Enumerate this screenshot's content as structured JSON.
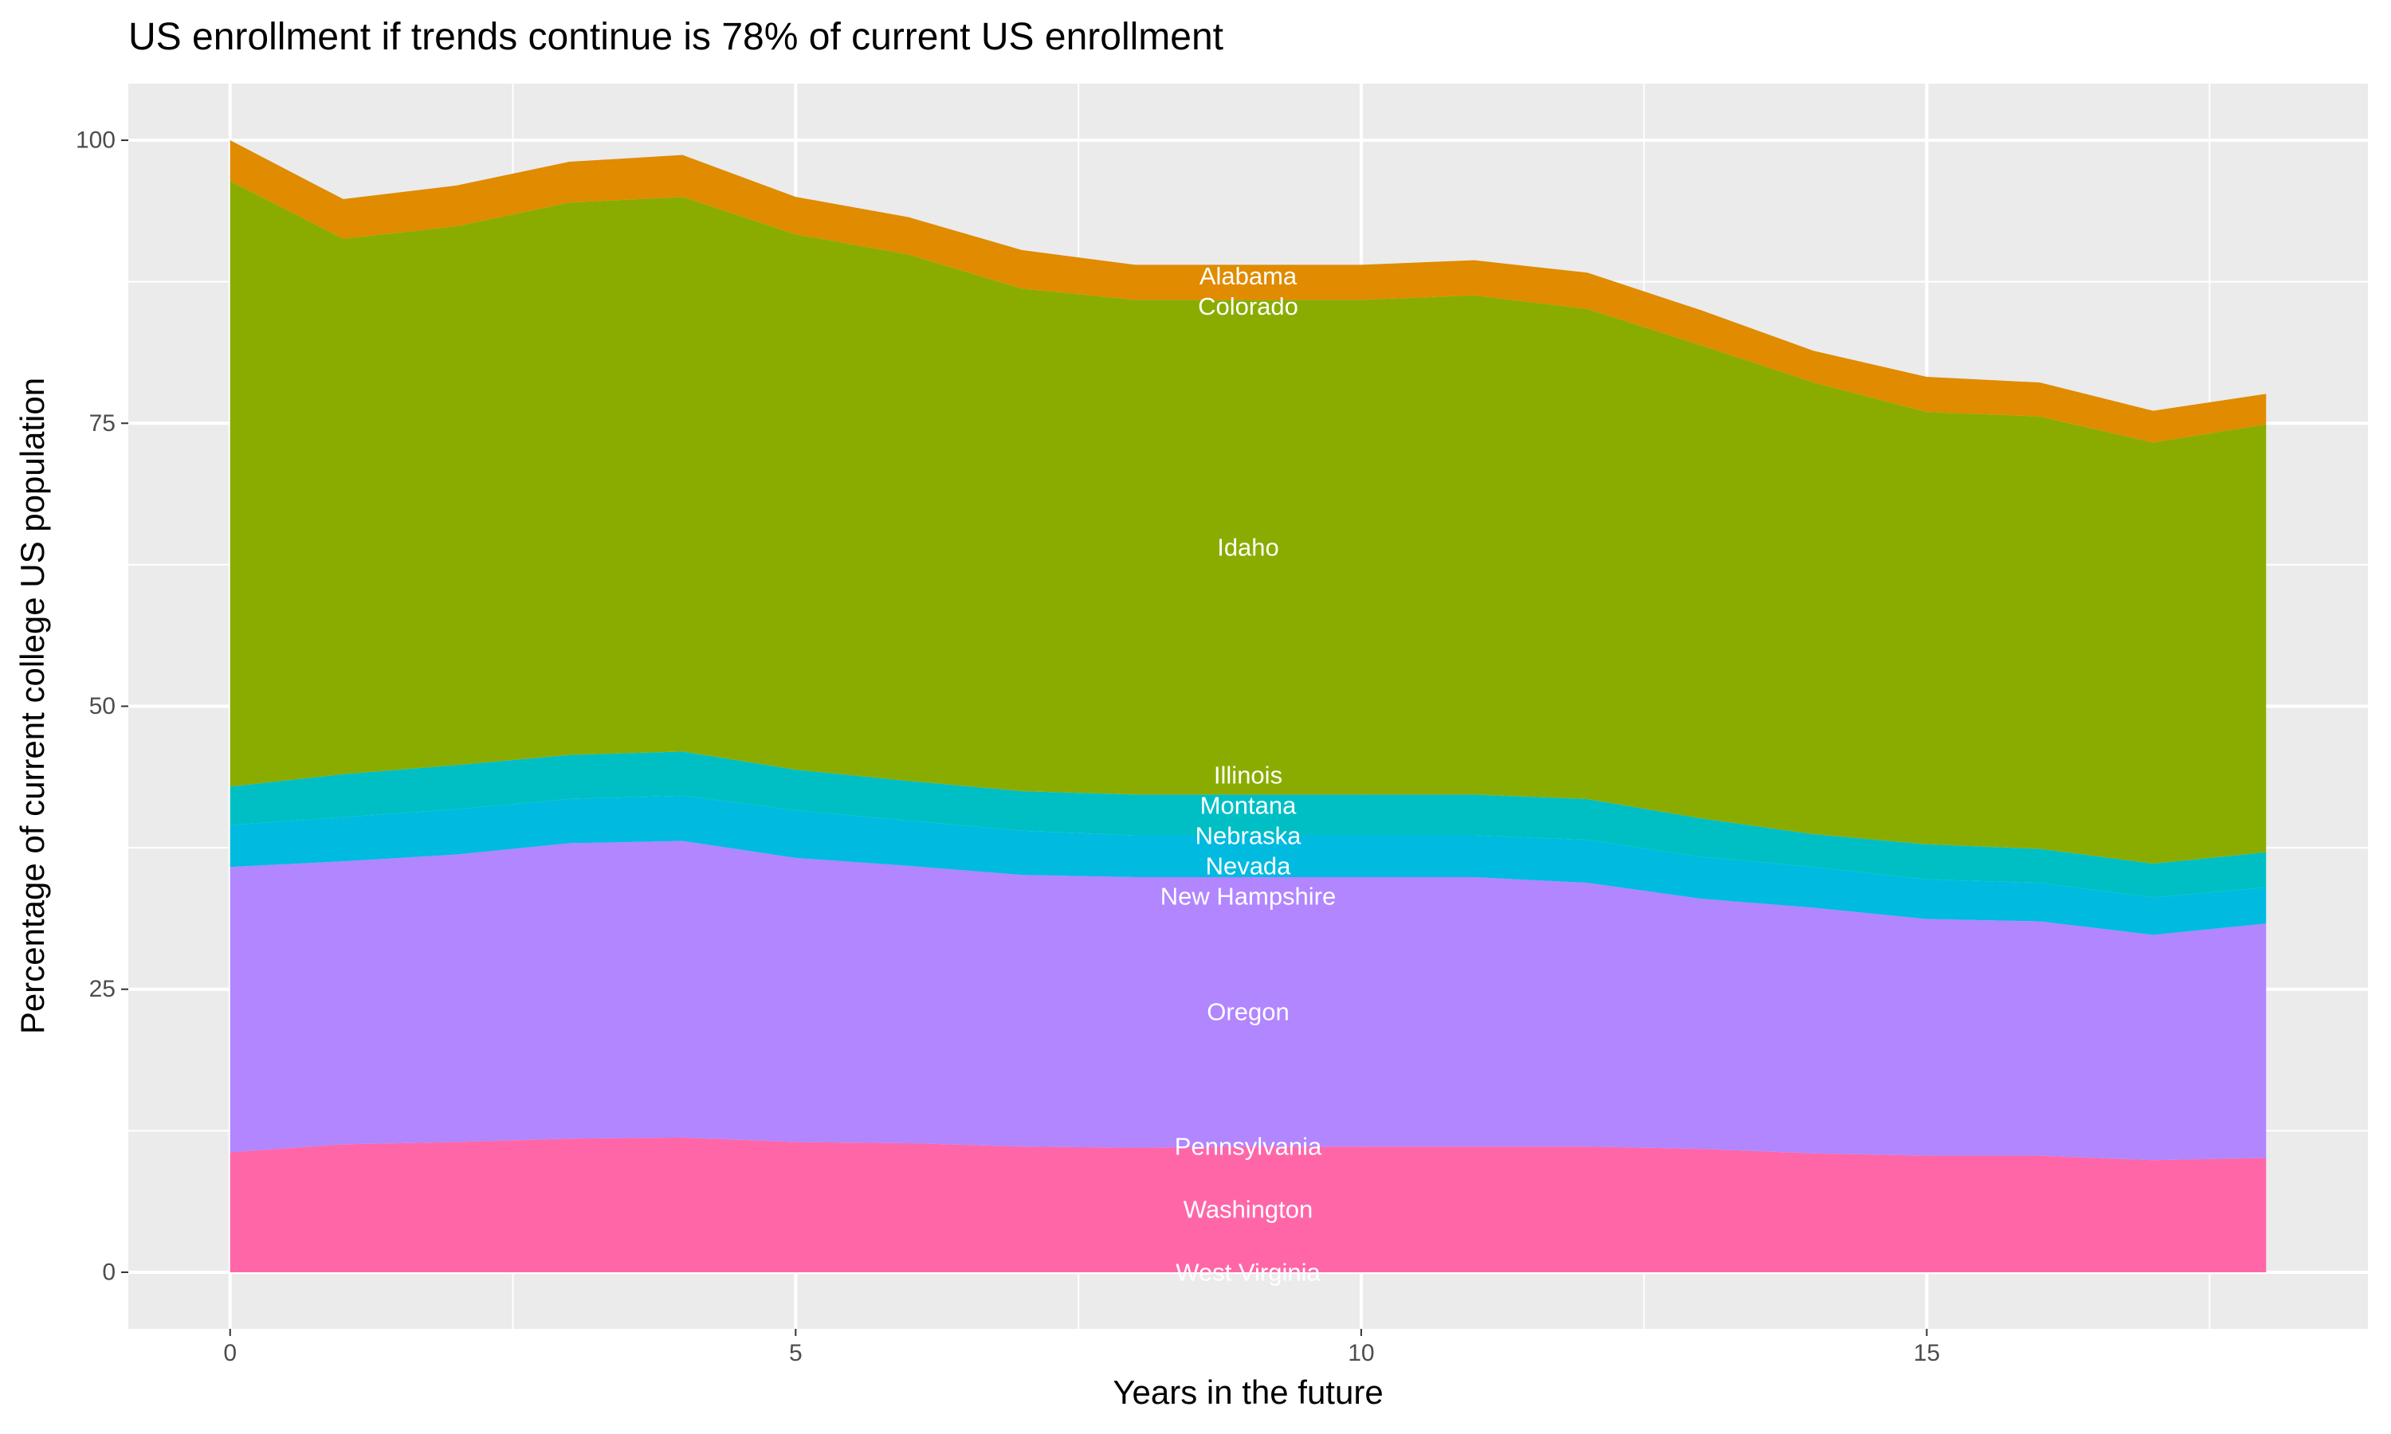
{
  "chart_data": {
    "type": "area",
    "stacked": true,
    "title": "US enrollment if trends continue is 78% of current US enrollment",
    "xlabel": "Years in the future",
    "ylabel": "Percentage of current college US population",
    "xlim": [
      -0.9,
      18.9
    ],
    "ylim": [
      -5,
      105
    ],
    "x_ticks": [
      0,
      5,
      10,
      15
    ],
    "y_ticks": [
      0,
      25,
      50,
      75,
      100
    ],
    "x_tick_labels": [
      "0",
      "5",
      "10",
      "15"
    ],
    "y_tick_labels": [
      "0",
      "25",
      "50",
      "75",
      "100"
    ],
    "grid": true,
    "legend": "none (direct labels at x=9)",
    "label_x": 9,
    "x": [
      0,
      1,
      2,
      3,
      4,
      5,
      6,
      7,
      8,
      9,
      10,
      11,
      12,
      13,
      14,
      15,
      16,
      17,
      18
    ],
    "series": [
      {
        "name": "Alabama",
        "color": "#E08B00",
        "values": [
          3.6,
          3.5,
          3.6,
          3.6,
          3.7,
          3.3,
          3.3,
          3.4,
          3.1,
          3.1,
          3.1,
          3.1,
          3.2,
          3.1,
          2.8,
          3.1,
          3.0,
          2.8,
          2.7
        ]
      },
      {
        "name": "Colorado",
        "color": "#C49A00",
        "values": [
          0,
          0,
          0,
          0,
          0,
          0,
          0,
          0,
          0,
          0,
          0,
          0,
          0,
          0,
          0,
          0,
          0,
          0,
          0
        ]
      },
      {
        "name": "Idaho",
        "color": "#8AAC00",
        "values": [
          53.5,
          47.3,
          47.6,
          48.8,
          49.0,
          47.3,
          46.5,
          44.4,
          43.7,
          43.7,
          43.7,
          44.1,
          43.3,
          41.8,
          39.9,
          38.2,
          38.2,
          37.2,
          37.8
        ]
      },
      {
        "name": "Illinois",
        "color": "#00C08B",
        "values": [
          0,
          0,
          0,
          0,
          0,
          0,
          0,
          0,
          0,
          0,
          0,
          0,
          0,
          0,
          0,
          0,
          0,
          0,
          0
        ]
      },
      {
        "name": "Montana",
        "color": "#00BFC4",
        "values": [
          3.4,
          3.8,
          3.9,
          3.9,
          3.9,
          3.6,
          3.5,
          3.5,
          3.6,
          3.6,
          3.6,
          3.6,
          3.6,
          3.4,
          2.9,
          3.1,
          3.0,
          3.0,
          3.1
        ]
      },
      {
        "name": "Nebraska",
        "color": "#00BCD8",
        "values": [
          0,
          0,
          0,
          0,
          0,
          0,
          0,
          0,
          0,
          0,
          0,
          0,
          0,
          0,
          0,
          0,
          0,
          0,
          0
        ]
      },
      {
        "name": "Nevada",
        "color": "#00BAE0",
        "values": [
          3.7,
          3.9,
          4.0,
          3.9,
          4.0,
          4.2,
          4.0,
          3.9,
          3.7,
          3.7,
          3.7,
          3.7,
          3.8,
          3.7,
          3.6,
          3.5,
          3.4,
          3.3,
          3.2
        ]
      },
      {
        "name": "New Hampshire",
        "color": "#35A2FF",
        "values": [
          0,
          0,
          0,
          0,
          0,
          0,
          0,
          0,
          0,
          0,
          0,
          0,
          0,
          0,
          0,
          0,
          0,
          0,
          0
        ]
      },
      {
        "name": "Oregon",
        "color": "#B186FF",
        "values": [
          25.2,
          25.0,
          25.4,
          26.1,
          26.2,
          25.1,
          24.5,
          24.0,
          23.9,
          23.8,
          23.8,
          23.8,
          23.3,
          22.1,
          21.7,
          20.9,
          20.7,
          19.9,
          20.7
        ]
      },
      {
        "name": "Pennsylvania",
        "color": "#E76BF3",
        "values": [
          0,
          0,
          0,
          0,
          0,
          0,
          0,
          0,
          0,
          0,
          0,
          0,
          0,
          0,
          0,
          0,
          0,
          0,
          0
        ]
      },
      {
        "name": "Washington",
        "color": "#FF66A8",
        "values": [
          10.6,
          11.3,
          11.5,
          11.8,
          11.9,
          11.5,
          11.4,
          11.1,
          11.0,
          11.1,
          11.1,
          11.1,
          11.1,
          10.9,
          10.5,
          10.3,
          10.3,
          9.9,
          10.1
        ]
      },
      {
        "name": "West Virginia",
        "color": "#FF6C91",
        "values": [
          0,
          0,
          0,
          0,
          0,
          0,
          0,
          0,
          0,
          0,
          0,
          0,
          0,
          0,
          0,
          0,
          0,
          0,
          0
        ]
      }
    ]
  }
}
